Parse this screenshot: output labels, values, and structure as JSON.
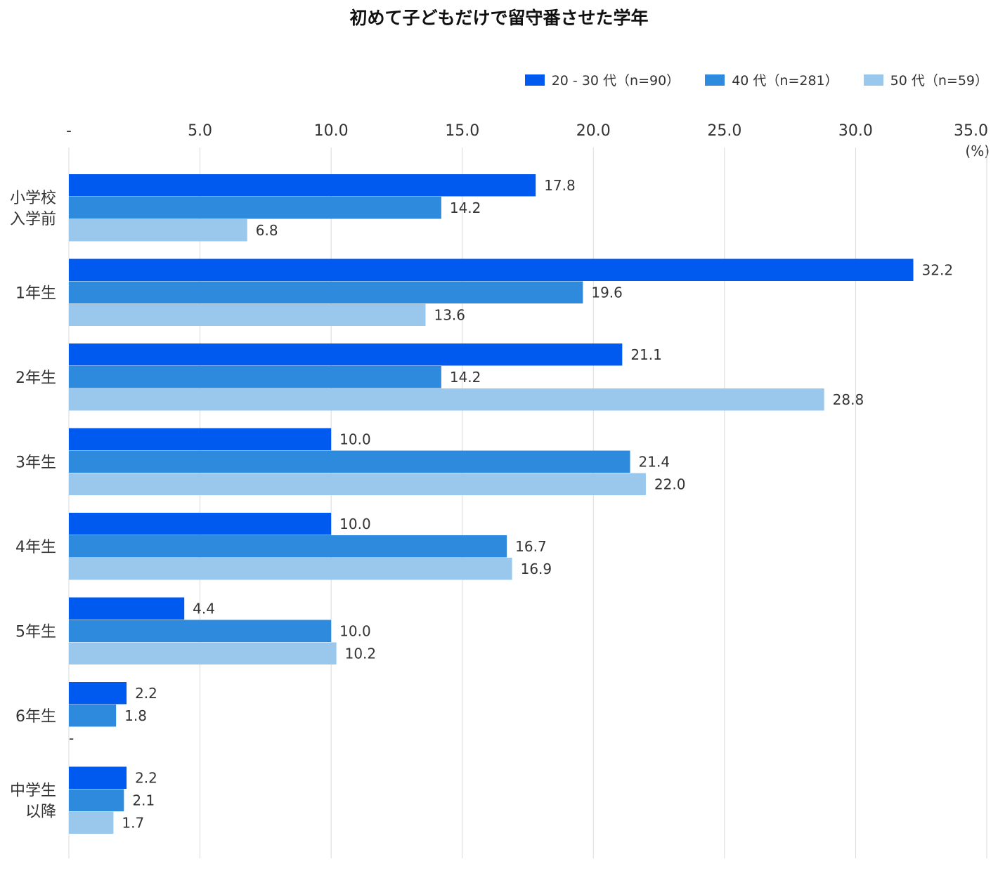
{
  "chart_data": {
    "type": "bar",
    "orientation": "horizontal",
    "title": "初めて子どもだけで留守番させた学年",
    "unit": "(%)",
    "xlim": [
      0,
      35
    ],
    "ticks": [
      {
        "value": 0,
        "label": "-"
      },
      {
        "value": 5,
        "label": "5.0"
      },
      {
        "value": 10,
        "label": "10.0"
      },
      {
        "value": 15,
        "label": "15.0"
      },
      {
        "value": 20,
        "label": "20.0"
      },
      {
        "value": 25,
        "label": "25.0"
      },
      {
        "value": 30,
        "label": "30.0"
      },
      {
        "value": 35,
        "label": "35.0"
      }
    ],
    "categories": [
      [
        "小学校",
        "入学前"
      ],
      [
        "1年生"
      ],
      [
        "2年生"
      ],
      [
        "3年生"
      ],
      [
        "4年生"
      ],
      [
        "5年生"
      ],
      [
        "6年生"
      ],
      [
        "中学生",
        "以降"
      ]
    ],
    "series": [
      {
        "name": "20 - 30 代（n=90）",
        "color": "#005AF0",
        "values": [
          17.8,
          32.2,
          21.1,
          10.0,
          10.0,
          4.4,
          2.2,
          2.2
        ],
        "labels": [
          "17.8",
          "32.2",
          "21.1",
          "10.0",
          "10.0",
          "4.4",
          "2.2",
          "2.2"
        ]
      },
      {
        "name": "40 代（n=281）",
        "color": "#2E8ADC",
        "values": [
          14.2,
          19.6,
          14.2,
          21.4,
          16.7,
          10.0,
          1.8,
          2.1
        ],
        "labels": [
          "14.2",
          "19.6",
          "14.2",
          "21.4",
          "16.7",
          "10.0",
          "1.8",
          "2.1"
        ]
      },
      {
        "name": "50 代（n=59）",
        "color": "#99C8EC",
        "values": [
          6.8,
          13.6,
          28.8,
          22.0,
          16.9,
          10.2,
          0,
          1.7
        ],
        "labels": [
          "6.8",
          "13.6",
          "28.8",
          "22.0",
          "16.9",
          "10.2",
          "-",
          "1.7"
        ]
      }
    ]
  }
}
